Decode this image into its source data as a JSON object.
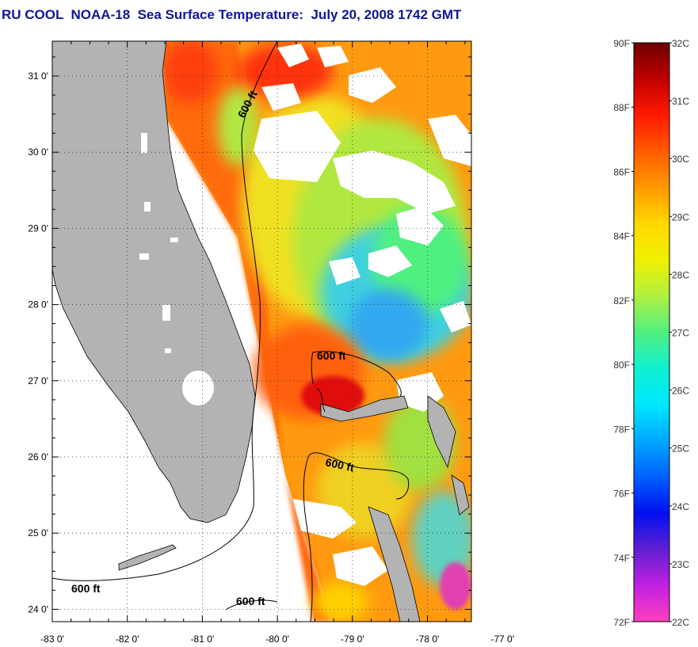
{
  "title": "RU COOL  NOAA-18  Sea Surface Temperature:  July 20, 2008 1742 GMT",
  "map": {
    "lat_labels": [
      {
        "lat": 31,
        "label": "31 0'"
      },
      {
        "lat": 30,
        "label": "30 0'"
      },
      {
        "lat": 29,
        "label": "29 0'"
      },
      {
        "lat": 28,
        "label": "28 0'"
      },
      {
        "lat": 27,
        "label": "27 0'"
      },
      {
        "lat": 26,
        "label": "26 0'"
      },
      {
        "lat": 25,
        "label": "25 0'"
      },
      {
        "lat": 24,
        "label": "24 0'"
      }
    ],
    "lon_labels": [
      {
        "lon": -83,
        "label": "-83 0'"
      },
      {
        "lon": -82,
        "label": "-82 0'"
      },
      {
        "lon": -81,
        "label": "-81 0'"
      },
      {
        "lon": -80,
        "label": "-80 0'"
      },
      {
        "lon": -79,
        "label": "-79 0'"
      },
      {
        "lon": -78,
        "label": "-78 0'"
      },
      {
        "lon": -77,
        "label": "-77 0'"
      }
    ],
    "contour_labels": [
      "600 ft",
      "600 ft",
      "600 ft",
      "600 ft",
      "600 ft"
    ],
    "land_color": "#b3b3b3",
    "cloud_color": "#ffffff"
  },
  "colorbar": {
    "fahrenheit_labels": [
      "90F",
      "88F",
      "86F",
      "84F",
      "82F",
      "80F",
      "78F",
      "76F",
      "74F",
      "72F"
    ],
    "celsius_labels": [
      "32C",
      "31C",
      "30C",
      "29C",
      "28C",
      "27C",
      "26C",
      "25C",
      "24C",
      "23C",
      "22C"
    ],
    "gradient_stops": [
      "#6b0000",
      "#c00000",
      "#ff1a00",
      "#ff5a00",
      "#ff9a00",
      "#ffd800",
      "#f0f000",
      "#b0f040",
      "#50f080",
      "#10f0d0",
      "#00e8ff",
      "#00a8ff",
      "#0060ff",
      "#0010f0",
      "#6020d0",
      "#c020e0",
      "#ff40c0"
    ]
  }
}
